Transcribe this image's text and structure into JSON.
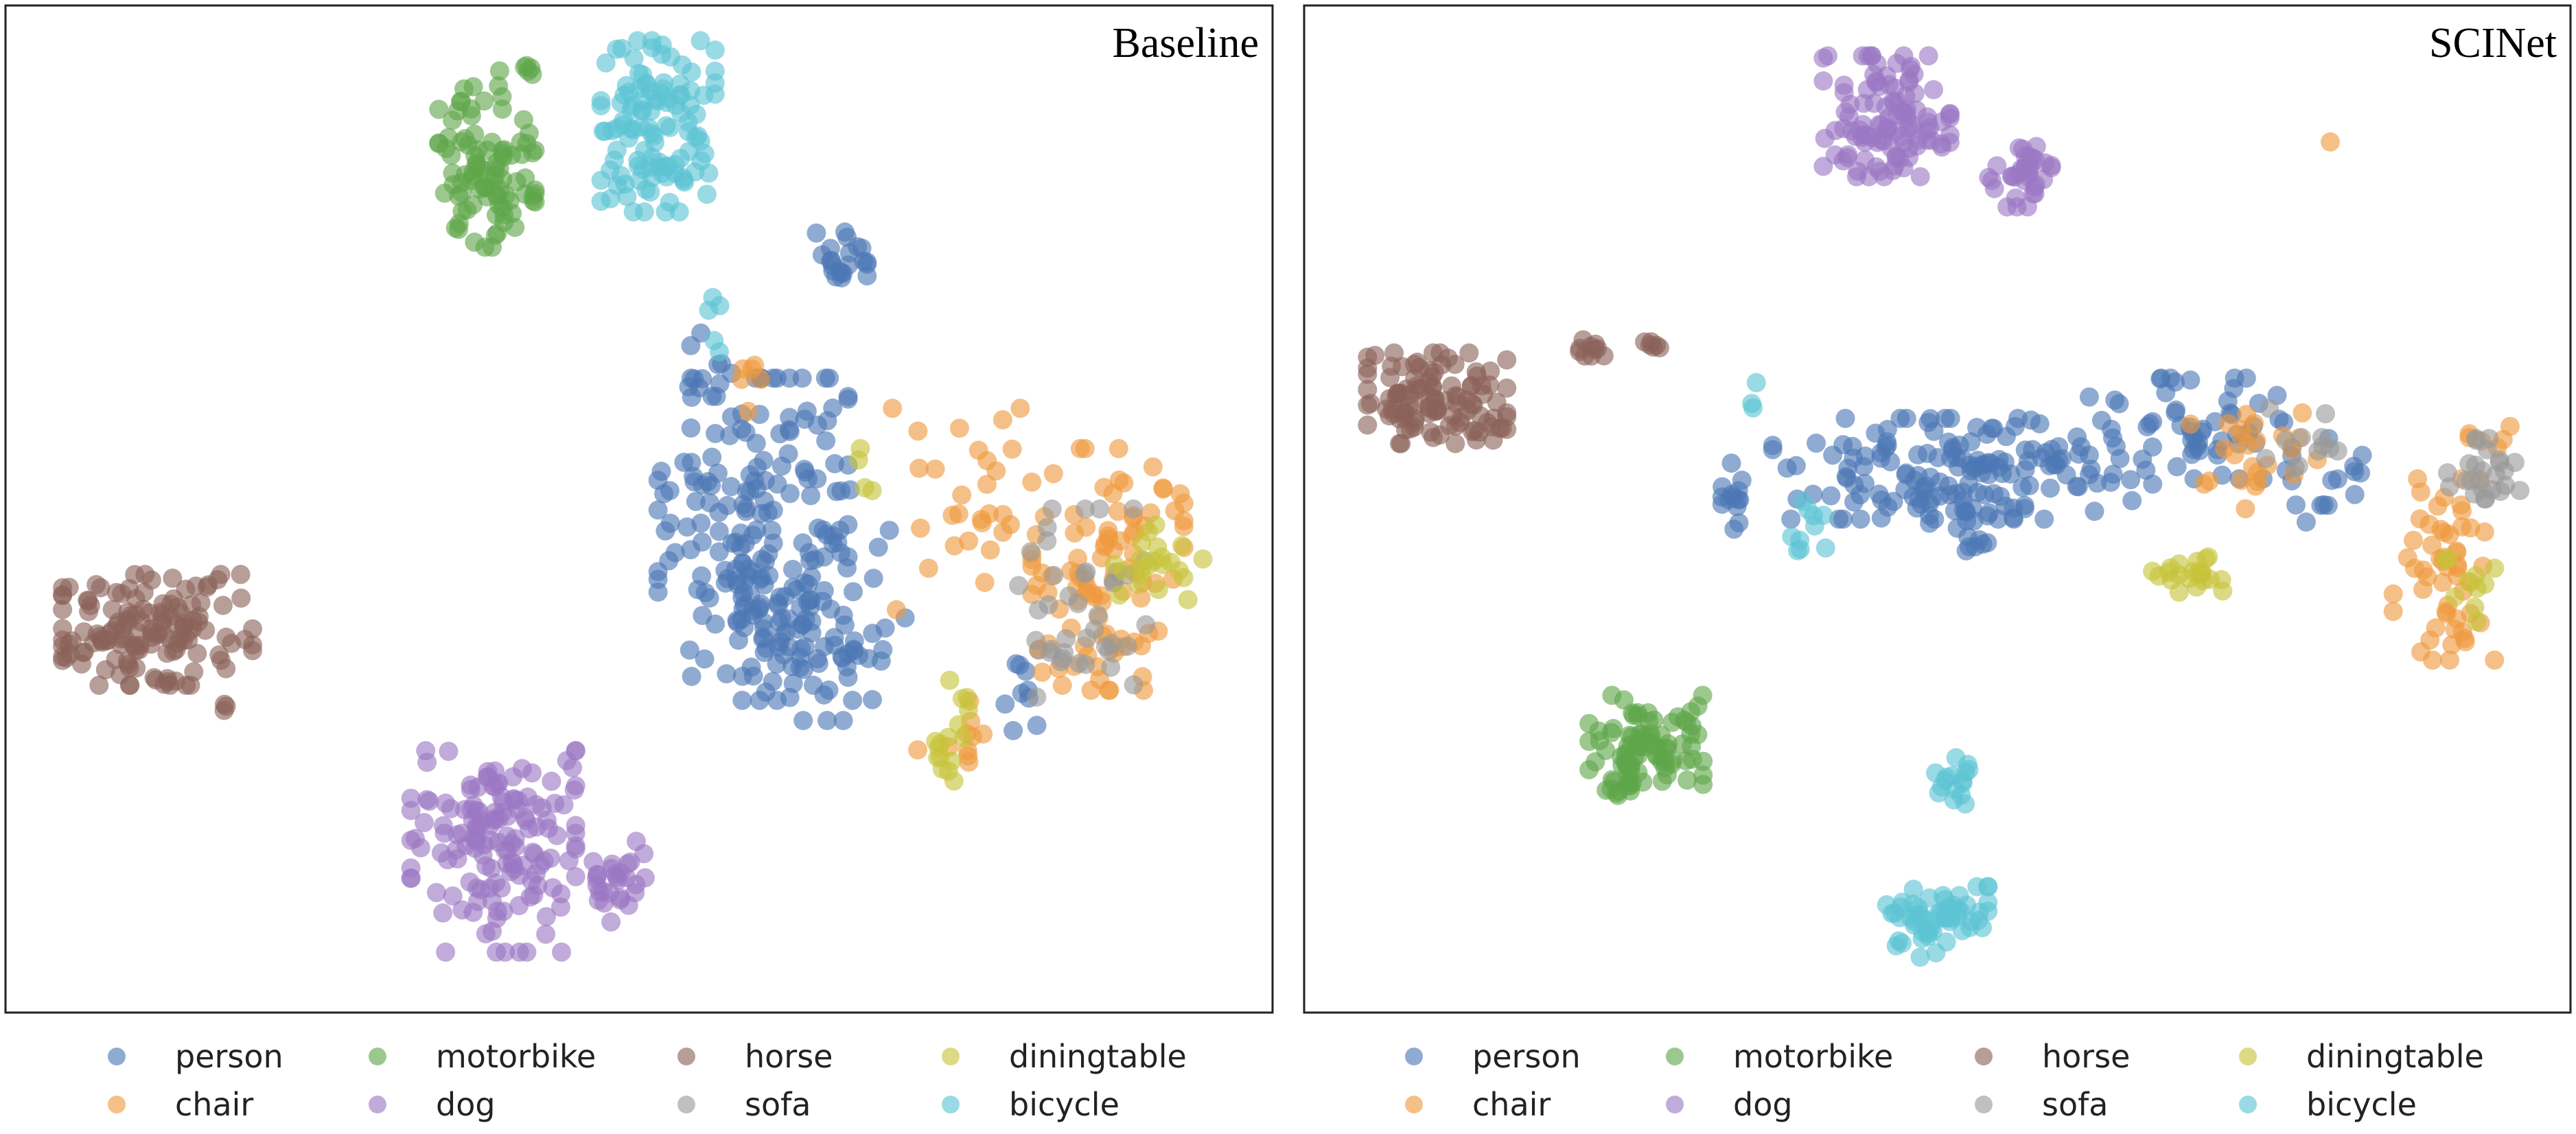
{
  "figure": {
    "colors": {
      "person": "#4c78b5",
      "chair": "#ef9a3d",
      "motorbike": "#5fa64a",
      "dog": "#9b78c4",
      "horse": "#8a6358",
      "sofa": "#9a9a9a",
      "diningtable": "#c7c43a",
      "bicycle": "#5cc3d3"
    }
  },
  "chart_data": [
    {
      "type": "scatter",
      "title": "Baseline",
      "xlabel": "",
      "ylabel": "",
      "grid": false,
      "axes_ticks": false,
      "legend_placement": "bottom",
      "legend": [
        "person",
        "chair",
        "motorbike",
        "dog",
        "horse",
        "sofa",
        "diningtable",
        "bicycle"
      ],
      "series": [
        {
          "name": "person",
          "color": "#4c78b5",
          "clusters": [
            {
              "cx": 0.59,
              "cy": 0.53,
              "rx": 0.075,
              "ry": 0.16,
              "n": 170
            },
            {
              "cx": 0.66,
              "cy": 0.59,
              "rx": 0.05,
              "ry": 0.12,
              "n": 40
            },
            {
              "cx": 0.555,
              "cy": 0.375,
              "rx": 0.018,
              "ry": 0.05,
              "n": 14
            },
            {
              "cx": 0.66,
              "cy": 0.25,
              "rx": 0.02,
              "ry": 0.025,
              "n": 22
            },
            {
              "cx": 0.805,
              "cy": 0.68,
              "rx": 0.018,
              "ry": 0.04,
              "n": 10
            },
            {
              "cx": 0.61,
              "cy": 0.63,
              "rx": 0.06,
              "ry": 0.06,
              "n": 40
            }
          ]
        },
        {
          "name": "chair",
          "color": "#ef9a3d",
          "clusters": [
            {
              "cx": 0.87,
              "cy": 0.56,
              "rx": 0.06,
              "ry": 0.12,
              "n": 95
            },
            {
              "cx": 0.76,
              "cy": 0.5,
              "rx": 0.06,
              "ry": 0.1,
              "n": 30
            },
            {
              "cx": 0.585,
              "cy": 0.375,
              "rx": 0.015,
              "ry": 0.03,
              "n": 6
            },
            {
              "cx": 0.75,
              "cy": 0.73,
              "rx": 0.03,
              "ry": 0.04,
              "n": 10
            }
          ]
        },
        {
          "name": "motorbike",
          "color": "#5fa64a",
          "clusters": [
            {
              "cx": 0.38,
              "cy": 0.16,
              "rx": 0.038,
              "ry": 0.08,
              "n": 95
            },
            {
              "cx": 0.41,
              "cy": 0.065,
              "rx": 0.02,
              "ry": 0.012,
              "n": 6
            }
          ]
        },
        {
          "name": "dog",
          "color": "#9b78c4",
          "clusters": [
            {
              "cx": 0.385,
              "cy": 0.84,
              "rx": 0.065,
              "ry": 0.1,
              "n": 150
            },
            {
              "cx": 0.48,
              "cy": 0.87,
              "rx": 0.025,
              "ry": 0.04,
              "n": 28
            }
          ]
        },
        {
          "name": "horse",
          "color": "#8a6358",
          "clusters": [
            {
              "cx": 0.12,
              "cy": 0.62,
              "rx": 0.075,
              "ry": 0.055,
              "n": 140
            },
            {
              "cx": 0.175,
              "cy": 0.69,
              "rx": 0.006,
              "ry": 0.01,
              "n": 3
            }
          ]
        },
        {
          "name": "sofa",
          "color": "#9a9a9a",
          "clusters": [
            {
              "cx": 0.85,
              "cy": 0.6,
              "rx": 0.06,
              "ry": 0.1,
              "n": 40
            }
          ]
        },
        {
          "name": "diningtable",
          "color": "#c7c43a",
          "clusters": [
            {
              "cx": 0.91,
              "cy": 0.55,
              "rx": 0.035,
              "ry": 0.04,
              "n": 22
            },
            {
              "cx": 0.745,
              "cy": 0.72,
              "rx": 0.015,
              "ry": 0.05,
              "n": 16
            },
            {
              "cx": 0.68,
              "cy": 0.47,
              "rx": 0.01,
              "ry": 0.03,
              "n": 4
            }
          ]
        },
        {
          "name": "bicycle",
          "color": "#5cc3d3",
          "clusters": [
            {
              "cx": 0.515,
              "cy": 0.12,
              "rx": 0.045,
              "ry": 0.085,
              "n": 115
            },
            {
              "cx": 0.56,
              "cy": 0.32,
              "rx": 0.01,
              "ry": 0.03,
              "n": 5
            }
          ]
        }
      ]
    },
    {
      "type": "scatter",
      "title": "SCINet",
      "xlabel": "",
      "ylabel": "",
      "grid": false,
      "axes_ticks": false,
      "legend_placement": "bottom",
      "legend": [
        "person",
        "chair",
        "motorbike",
        "dog",
        "horse",
        "sofa",
        "diningtable",
        "bicycle"
      ],
      "series": [
        {
          "name": "person",
          "color": "#4c78b5",
          "clusters": [
            {
              "cx": 0.52,
              "cy": 0.46,
              "rx": 0.15,
              "ry": 0.05,
              "n": 150
            },
            {
              "cx": 0.7,
              "cy": 0.42,
              "rx": 0.08,
              "ry": 0.05,
              "n": 60
            },
            {
              "cx": 0.34,
              "cy": 0.485,
              "rx": 0.01,
              "ry": 0.035,
              "n": 14
            },
            {
              "cx": 0.52,
              "cy": 0.52,
              "rx": 0.04,
              "ry": 0.03,
              "n": 20
            },
            {
              "cx": 0.82,
              "cy": 0.48,
              "rx": 0.05,
              "ry": 0.05,
              "n": 15
            }
          ]
        },
        {
          "name": "chair",
          "color": "#ef9a3d",
          "clusters": [
            {
              "cx": 0.9,
              "cy": 0.56,
              "rx": 0.04,
              "ry": 0.09,
              "n": 55
            },
            {
              "cx": 0.75,
              "cy": 0.45,
              "rx": 0.05,
              "ry": 0.05,
              "n": 25
            },
            {
              "cx": 0.94,
              "cy": 0.43,
              "rx": 0.02,
              "ry": 0.02,
              "n": 6
            },
            {
              "cx": 0.812,
              "cy": 0.135,
              "rx": 0.003,
              "ry": 0.004,
              "n": 1
            }
          ]
        },
        {
          "name": "motorbike",
          "color": "#5fa64a",
          "clusters": [
            {
              "cx": 0.27,
              "cy": 0.73,
              "rx": 0.045,
              "ry": 0.045,
              "n": 75
            },
            {
              "cx": 0.25,
              "cy": 0.76,
              "rx": 0.02,
              "ry": 0.03,
              "n": 20
            }
          ]
        },
        {
          "name": "dog",
          "color": "#9b78c4",
          "clusters": [
            {
              "cx": 0.46,
              "cy": 0.11,
              "rx": 0.05,
              "ry": 0.06,
              "n": 110
            },
            {
              "cx": 0.565,
              "cy": 0.17,
              "rx": 0.025,
              "ry": 0.03,
              "n": 35
            }
          ]
        },
        {
          "name": "horse",
          "color": "#8a6358",
          "clusters": [
            {
              "cx": 0.105,
              "cy": 0.39,
              "rx": 0.055,
              "ry": 0.045,
              "n": 110
            },
            {
              "cx": 0.22,
              "cy": 0.34,
              "rx": 0.018,
              "ry": 0.008,
              "n": 10
            },
            {
              "cx": 0.275,
              "cy": 0.335,
              "rx": 0.01,
              "ry": 0.005,
              "n": 6
            }
          ]
        },
        {
          "name": "sofa",
          "color": "#9a9a9a",
          "clusters": [
            {
              "cx": 0.93,
              "cy": 0.46,
              "rx": 0.03,
              "ry": 0.03,
              "n": 25
            },
            {
              "cx": 0.79,
              "cy": 0.43,
              "rx": 0.05,
              "ry": 0.03,
              "n": 12
            }
          ]
        },
        {
          "name": "diningtable",
          "color": "#c7c43a",
          "clusters": [
            {
              "cx": 0.7,
              "cy": 0.565,
              "rx": 0.03,
              "ry": 0.025,
              "n": 22
            },
            {
              "cx": 0.92,
              "cy": 0.58,
              "rx": 0.02,
              "ry": 0.04,
              "n": 10
            }
          ]
        },
        {
          "name": "bicycle",
          "color": "#5cc3d3",
          "clusters": [
            {
              "cx": 0.5,
              "cy": 0.91,
              "rx": 0.04,
              "ry": 0.035,
              "n": 60
            },
            {
              "cx": 0.51,
              "cy": 0.77,
              "rx": 0.015,
              "ry": 0.035,
              "n": 16
            },
            {
              "cx": 0.4,
              "cy": 0.52,
              "rx": 0.015,
              "ry": 0.04,
              "n": 10
            },
            {
              "cx": 0.355,
              "cy": 0.39,
              "rx": 0.005,
              "ry": 0.02,
              "n": 3
            }
          ]
        }
      ]
    }
  ]
}
